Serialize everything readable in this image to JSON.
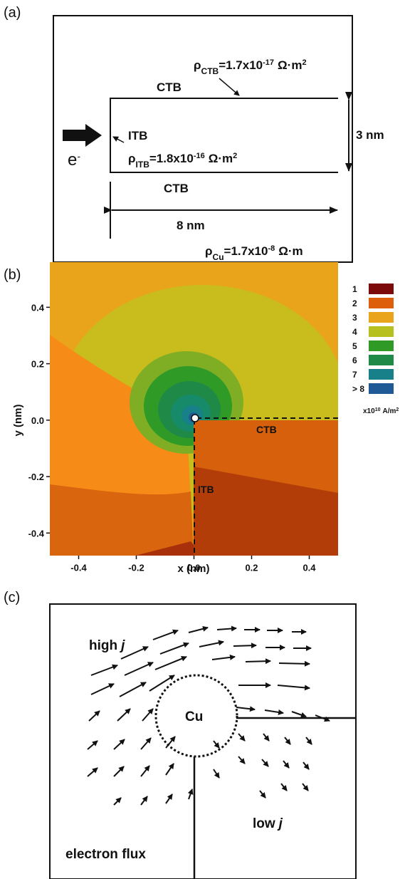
{
  "panel_a": {
    "label": "(a)",
    "ctb_top": "CTB",
    "ctb_bottom": "CTB",
    "itb": "ITB",
    "electron": {
      "base": "e",
      "sup": "-"
    },
    "width_label": "8 nm",
    "height_label": "3 nm",
    "rho_ctb": [
      "ρ",
      "CTB",
      "=1.7x10",
      "-17",
      "Ω·m",
      "2"
    ],
    "rho_itb": [
      "ρ",
      "ITB",
      "=1.8x10",
      "-16",
      "Ω·m",
      "2"
    ],
    "rho_cu": [
      "ρ",
      "Cu",
      "=1.7x10",
      "-8",
      "Ω·m"
    ]
  },
  "panel_b": {
    "label": "(b)",
    "xlabel": "x (nm)",
    "ylabel": "y (nm)",
    "xlim": [
      -0.5,
      0.5
    ],
    "ylim": [
      -0.48,
      0.56
    ],
    "xticks": [
      -0.4,
      -0.2,
      {
        "value": 0,
        "label": "0.0"
      },
      0.2,
      0.4
    ],
    "yticks": [
      -0.4,
      -0.2,
      {
        "value": 0,
        "label": "0.0"
      },
      0.2,
      0.4
    ],
    "ctb": "CTB",
    "itb": "ITB",
    "legend": {
      "items": [
        {
          "label": "1",
          "color": "#7d0a0a"
        },
        {
          "label": "2",
          "color": "#dd5f0c"
        },
        {
          "label": "3",
          "color": "#e9a41b"
        },
        {
          "label": "4",
          "color": "#b6c01f"
        },
        {
          "label": "5",
          "color": "#2f9a25"
        },
        {
          "label": "6",
          "color": "#1f8a48"
        },
        {
          "label": "7",
          "color": "#178088"
        },
        {
          "label": "> 8",
          "color": "#1f5a96"
        }
      ],
      "unit": [
        "x10",
        "10",
        "A/m",
        "2"
      ]
    }
  },
  "panel_c": {
    "label": "(c)",
    "high": [
      "high",
      "j"
    ],
    "low": [
      "low",
      "j"
    ],
    "cu": "Cu",
    "flux": "electron flux"
  }
}
